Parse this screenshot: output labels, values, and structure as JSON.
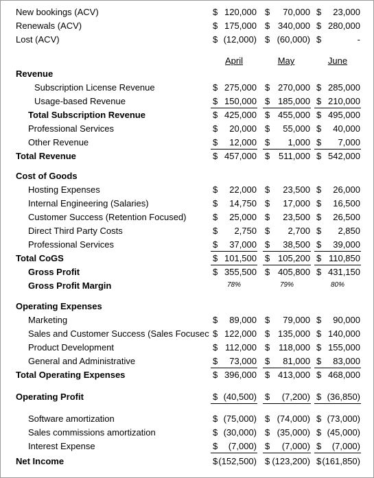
{
  "months": [
    "April",
    "May",
    "June"
  ],
  "rows": [
    {
      "label": "New bookings (ACV)",
      "indent": 0,
      "bold": false,
      "values": [
        "$ 120,000",
        "$ 70,000",
        "$ 23,000"
      ]
    },
    {
      "label": "Renewals (ACV)",
      "indent": 0,
      "bold": false,
      "values": [
        "$ 175,000",
        "$ 340,000",
        "$ 280,000"
      ]
    },
    {
      "label": "Lost (ACV)",
      "indent": 0,
      "bold": false,
      "values": [
        "$ (12,000)",
        "$ (60,000)",
        "$ -"
      ]
    },
    {
      "label": "Revenue",
      "indent": 0,
      "bold": true,
      "values": null
    },
    {
      "label": "Subscription License Revenue",
      "indent": 2,
      "bold": false,
      "values": [
        "$ 275,000",
        "$ 270,000",
        "$ 285,000"
      ]
    },
    {
      "label": "Usage-based Revenue",
      "indent": 2,
      "bold": false,
      "values": [
        "$ 150,000",
        "$ 185,000",
        "$ 210,000"
      ],
      "underline": true
    },
    {
      "label": "Total Subscription Revenue",
      "indent": 1,
      "bold": true,
      "values": [
        "$ 425,000",
        "$ 455,000",
        "$ 495,000"
      ]
    },
    {
      "label": "Professional Services",
      "indent": 1,
      "bold": false,
      "values": [
        "$ 20,000",
        "$ 55,000",
        "$ 40,000"
      ]
    },
    {
      "label": "Other Revenue",
      "indent": 1,
      "bold": false,
      "values": [
        "$ 12,000",
        "$ 1,000",
        "$ 7,000"
      ],
      "underline": true
    },
    {
      "label": "Total Revenue",
      "indent": 0,
      "bold": true,
      "values": [
        "$ 457,000",
        "$ 511,000",
        "$ 542,000"
      ]
    },
    {
      "label": "Cost of Goods",
      "indent": 0,
      "bold": true,
      "values": null
    },
    {
      "label": "Hosting Expenses",
      "indent": 1,
      "bold": false,
      "values": [
        "$ 22,000",
        "$ 23,500",
        "$ 26,000"
      ]
    },
    {
      "label": "Internal Engineering (Salaries)",
      "indent": 1,
      "bold": false,
      "values": [
        "$ 14,750",
        "$ 17,000",
        "$ 16,500"
      ]
    },
    {
      "label": "Customer Success  (Retention Focused)",
      "indent": 1,
      "bold": false,
      "values": [
        "$ 25,000",
        "$ 23,500",
        "$ 26,500"
      ]
    },
    {
      "label": "Direct Third Party Costs",
      "indent": 1,
      "bold": false,
      "values": [
        "$ 2,750",
        "$ 2,700",
        "$ 2,850"
      ]
    },
    {
      "label": "Professional Services",
      "indent": 1,
      "bold": false,
      "values": [
        "$ 37,000",
        "$ 38,500",
        "$ 39,000"
      ],
      "underline": true
    },
    {
      "label": "Total CoGS",
      "indent": 0,
      "bold": true,
      "values": [
        "$ 101,500",
        "$ 105,200",
        "$ 110,850"
      ],
      "underline": true
    },
    {
      "label": "Gross Profit",
      "indent": 1,
      "bold": true,
      "values": [
        "$ 355,500",
        "$ 405,800",
        "$ 431,150"
      ]
    },
    {
      "label": "Gross Profit Margin",
      "indent": 1,
      "bold": true,
      "percents": [
        "78%",
        "79%",
        "80%"
      ]
    },
    {
      "label": "Operating Expenses",
      "indent": 0,
      "bold": true,
      "values": null
    },
    {
      "label": "Marketing",
      "indent": 1,
      "bold": false,
      "values": [
        "$ 89,000",
        "$ 79,000",
        "$ 90,000"
      ]
    },
    {
      "label": "Sales and Customer Success (Sales Focusec",
      "indent": 1,
      "bold": false,
      "values": [
        "$ 122,000",
        "$ 135,000",
        "$ 140,000"
      ]
    },
    {
      "label": "Product Development",
      "indent": 1,
      "bold": false,
      "values": [
        "$ 112,000",
        "$ 118,000",
        "$ 155,000"
      ]
    },
    {
      "label": "General and Administrative",
      "indent": 1,
      "bold": false,
      "values": [
        "$ 73,000",
        "$ 81,000",
        "$ 83,000"
      ],
      "underline": true
    },
    {
      "label": "Total Operating Expenses",
      "indent": 0,
      "bold": true,
      "values": [
        "$ 396,000",
        "$ 413,000",
        "$ 468,000"
      ]
    },
    {
      "label": "Operating Profit",
      "indent": 0,
      "bold": true,
      "values": [
        "$ (40,500)",
        "$ (7,200)",
        "$ (36,850)"
      ],
      "underline": true
    },
    {
      "label": "Software amortization",
      "indent": 1,
      "bold": false,
      "values": [
        "$ (75,000)",
        "$ (74,000)",
        "$ (73,000)"
      ]
    },
    {
      "label": "Sales commissions amortization",
      "indent": 1,
      "bold": false,
      "values": [
        "$ (30,000)",
        "$ (35,000)",
        "$ (45,000)"
      ]
    },
    {
      "label": "Interest Expense",
      "indent": 1,
      "bold": false,
      "values": [
        "$ (7,000)",
        "$ (7,000)",
        "$ (7,000)"
      ],
      "underline": true
    },
    {
      "label": "Net Income",
      "indent": 0,
      "bold": true,
      "values": [
        "$(152,500)",
        "$(123,200)",
        "$(161,850)"
      ]
    }
  ]
}
